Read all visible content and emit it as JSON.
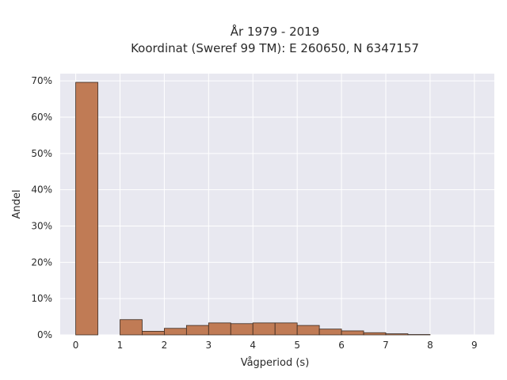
{
  "chart_data": {
    "type": "bar",
    "title_line1": "År 1979 - 2019",
    "title_line2": "Koordinat (Sweref 99 TM): E 260650, N 6347157",
    "xlabel": "Vågperiod (s)",
    "ylabel": "Andel",
    "xlim": [
      -0.35,
      9.45
    ],
    "ylim": [
      0,
      72
    ],
    "xticks": [
      0,
      1,
      2,
      3,
      4,
      5,
      6,
      7,
      8,
      9
    ],
    "yticks": [
      0,
      10,
      20,
      30,
      40,
      50,
      60,
      70
    ],
    "ytick_labels": [
      "0%",
      "10%",
      "20%",
      "30%",
      "40%",
      "50%",
      "60%",
      "70%"
    ],
    "bin_width": 0.5,
    "bins": [
      {
        "start": 0.0,
        "value": 69.6
      },
      {
        "start": 0.5,
        "value": 0
      },
      {
        "start": 1.0,
        "value": 4.2
      },
      {
        "start": 1.5,
        "value": 1.0
      },
      {
        "start": 2.0,
        "value": 1.8
      },
      {
        "start": 2.5,
        "value": 2.6
      },
      {
        "start": 3.0,
        "value": 3.3
      },
      {
        "start": 3.5,
        "value": 3.1
      },
      {
        "start": 4.0,
        "value": 3.3
      },
      {
        "start": 4.5,
        "value": 3.3
      },
      {
        "start": 5.0,
        "value": 2.6
      },
      {
        "start": 5.5,
        "value": 1.6
      },
      {
        "start": 6.0,
        "value": 1.1
      },
      {
        "start": 6.5,
        "value": 0.6
      },
      {
        "start": 7.0,
        "value": 0.3
      },
      {
        "start": 7.5,
        "value": 0.1
      }
    ],
    "grid": true,
    "colors": {
      "bar": "#c07b55",
      "plot_bg": "#e8e8f0",
      "grid": "#ffffff"
    }
  }
}
